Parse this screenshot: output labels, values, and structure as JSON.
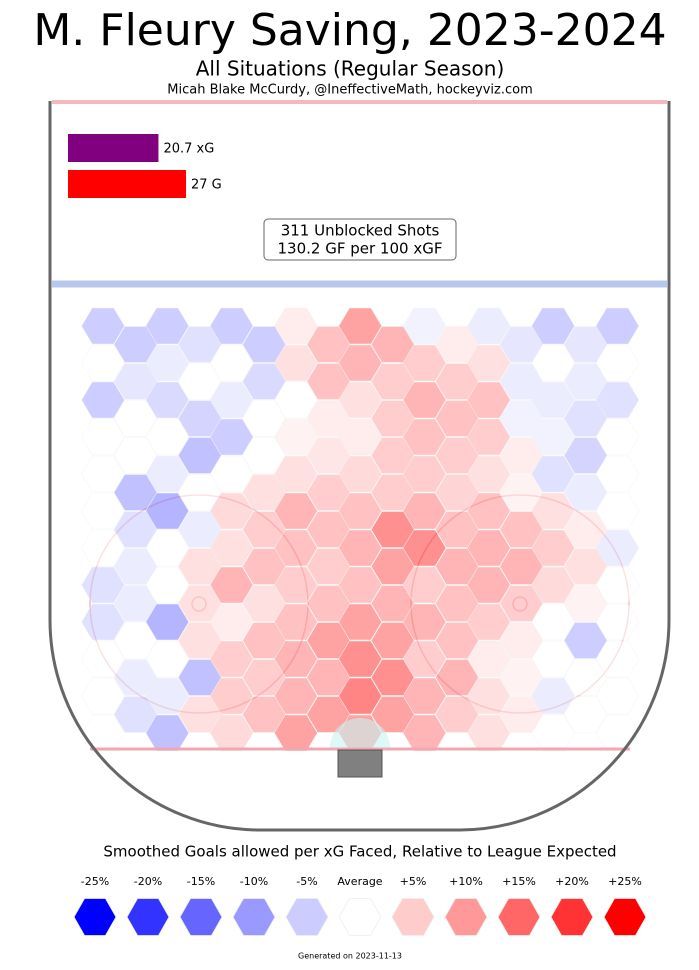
{
  "chart_data": {
    "type": "hexmap",
    "title": "M. Fleury Saving, 2023-2024",
    "subtitle": "All Situations (Regular Season)",
    "author": "Micah Blake McCurdy, @IneffectiveMath, hockeyviz.com",
    "bars": [
      {
        "name": "xG",
        "value": 20.7,
        "label": "20.7 xG",
        "color": "#800080"
      },
      {
        "name": "G",
        "value": 27,
        "label": "27 G",
        "color": "#ff0000"
      }
    ],
    "summary": [
      "311 Unblocked Shots",
      "130.2 GF per 100 xGF"
    ],
    "rows": [
      [
        -8,
        -8,
        -8,
        3,
        15,
        -2,
        -3,
        -8,
        -8
      ],
      [
        -8,
        -5,
        -8,
        10,
        12,
        3,
        -4,
        -4
      ],
      [
        0,
        -3,
        0,
        5,
        12,
        8,
        5,
        0,
        0
      ],
      [
        -4,
        0,
        -6,
        10,
        8,
        8,
        -3,
        -3
      ],
      [
        -8,
        -6,
        -3,
        0,
        5,
        12,
        10,
        -3,
        -5
      ],
      [
        0,
        -7,
        0,
        3,
        8,
        10,
        -2,
        -5
      ],
      [
        0,
        0,
        -8,
        2,
        3,
        10,
        8,
        -2,
        0
      ],
      [
        0,
        -10,
        0,
        4,
        8,
        8,
        3,
        -7
      ],
      [
        0,
        -3,
        0,
        5,
        6,
        8,
        5,
        -5,
        0
      ],
      [
        -10,
        0,
        5,
        8,
        8,
        7,
        2,
        -3
      ],
      [
        0,
        -12,
        6,
        12,
        10,
        12,
        10,
        5,
        0
      ],
      [
        -5,
        -3,
        8,
        10,
        18,
        10,
        10,
        3
      ],
      [
        0,
        0,
        5,
        10,
        12,
        18,
        12,
        8,
        -3
      ],
      [
        -3,
        5,
        10,
        8,
        15,
        12,
        12,
        5
      ],
      [
        -5,
        0,
        12,
        8,
        10,
        8,
        12,
        6,
        0
      ],
      [
        -3,
        5,
        5,
        10,
        12,
        10,
        8,
        2
      ],
      [
        -5,
        -12,
        3,
        10,
        15,
        12,
        8,
        0,
        0
      ],
      [
        0,
        5,
        10,
        15,
        15,
        10,
        3,
        -8
      ],
      [
        0,
        0,
        8,
        12,
        18,
        8,
        3,
        0,
        0
      ],
      [
        -3,
        -10,
        8,
        12,
        18,
        12,
        2,
        0
      ],
      [
        0,
        -3,
        8,
        12,
        20,
        12,
        5,
        -3,
        0
      ],
      [
        -5,
        5,
        10,
        15,
        15,
        8,
        3,
        0
      ],
      [
        0,
        -10,
        6,
        15,
        15,
        12,
        5,
        0,
        0
      ]
    ],
    "legend_title": "Smoothed Goals allowed per xG Faced, Relative to League Expected",
    "legend": [
      {
        "value": -25,
        "label": "-25%"
      },
      {
        "value": -20,
        "label": "-20%"
      },
      {
        "value": -15,
        "label": "-15%"
      },
      {
        "value": -10,
        "label": "-10%"
      },
      {
        "value": -5,
        "label": "-5%"
      },
      {
        "value": 0,
        "label": "Average"
      },
      {
        "value": 5,
        "label": "+5%"
      },
      {
        "value": 10,
        "label": "+10%"
      },
      {
        "value": 15,
        "label": "+15%"
      },
      {
        "value": 20,
        "label": "+20%"
      },
      {
        "value": 25,
        "label": "+25%"
      }
    ],
    "footer": "Generated on 2023-11-13"
  }
}
